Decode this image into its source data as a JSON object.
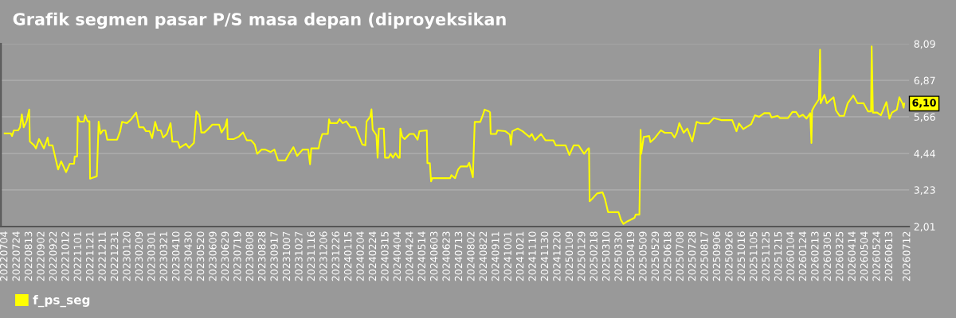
{
  "chart_data": {
    "type": "line",
    "title": "Grafik segmen pasar P/S masa depan (diproyeksikan",
    "x": [
      "2022-07-04",
      "2022-07-14",
      "2022-07-16",
      "2022-07-19",
      "2022-07-26",
      "2022-07-29",
      "2022-08-01",
      "2022-08-04",
      "2022-08-09",
      "2022-08-13",
      "2022-08-14",
      "2022-08-21",
      "2022-08-24",
      "2022-08-29",
      "2022-09-06",
      "2022-09-12",
      "2022-09-14",
      "2022-09-20",
      "2022-09-25",
      "2022-09-29",
      "2022-10-04",
      "2022-10-12",
      "2022-10-18",
      "2022-10-25",
      "2022-10-26",
      "2022-10-30",
      "2022-10-31",
      "2022-11-03",
      "2022-11-10",
      "2022-11-12",
      "2022-11-16",
      "2022-11-19",
      "2022-11-20",
      "2022-12-01",
      "2022-12-04",
      "2022-12-07",
      "2022-12-11",
      "2022-12-15",
      "2022-12-18",
      "2023-01-03",
      "2023-01-08",
      "2023-01-11",
      "2023-01-19",
      "2023-01-26",
      "2023-02-03",
      "2023-02-08",
      "2023-02-15",
      "2023-02-19",
      "2023-02-25",
      "2023-03-01",
      "2023-03-06",
      "2023-03-10",
      "2023-03-15",
      "2023-03-19",
      "2023-03-25",
      "2023-03-31",
      "2023-04-03",
      "2023-04-12",
      "2023-04-15",
      "2023-04-25",
      "2023-04-30",
      "2023-05-08",
      "2023-05-12",
      "2023-05-17",
      "2023-05-20",
      "2023-05-25",
      "2023-05-30",
      "2023-06-07",
      "2023-06-18",
      "2023-06-22",
      "2023-06-28",
      "2023-07-01",
      "2023-07-02",
      "2023-07-12",
      "2023-07-20",
      "2023-07-27",
      "2023-08-02",
      "2023-08-09",
      "2023-08-15",
      "2023-08-19",
      "2023-08-26",
      "2023-09-01",
      "2023-09-10",
      "2023-09-16",
      "2023-09-22",
      "2023-10-04",
      "2023-10-10",
      "2023-10-17",
      "2023-10-23",
      "2023-11-01",
      "2023-11-10",
      "2023-11-13",
      "2023-11-15",
      "2023-11-27",
      "2023-11-29",
      "2023-12-03",
      "2023-12-12",
      "2023-12-14",
      "2023-12-16",
      "2023-12-27",
      "2023-12-31",
      "2024-01-05",
      "2024-01-11",
      "2024-01-18",
      "2024-01-26",
      "2024-01-31",
      "2024-02-06",
      "2024-02-11",
      "2024-02-13",
      "2024-02-19",
      "2024-02-21",
      "2024-02-23",
      "2024-02-29",
      "2024-03-02",
      "2024-03-04",
      "2024-03-12",
      "2024-03-14",
      "2024-03-20",
      "2024-03-23",
      "2024-03-27",
      "2024-03-31",
      "2024-04-05",
      "2024-04-07",
      "2024-04-08",
      "2024-04-11",
      "2024-04-15",
      "2024-04-23",
      "2024-04-30",
      "2024-05-06",
      "2024-05-09",
      "2024-05-21",
      "2024-05-22",
      "2024-05-26",
      "2024-05-28",
      "2024-05-30",
      "2024-06-28",
      "2024-06-30",
      "2024-07-06",
      "2024-07-11",
      "2024-07-15",
      "2024-07-26",
      "2024-07-29",
      "2024-08-04",
      "2024-08-07",
      "2024-08-16",
      "2024-08-21",
      "2024-08-23",
      "2024-08-29",
      "2024-09-01",
      "2024-09-02",
      "2024-09-11",
      "2024-09-13",
      "2024-09-26",
      "2024-10-03",
      "2024-10-05",
      "2024-10-07",
      "2024-10-16",
      "2024-10-24",
      "2024-11-04",
      "2024-11-08",
      "2024-11-13",
      "2024-11-18",
      "2024-11-23",
      "2024-11-30",
      "2024-12-13",
      "2024-12-17",
      "2025-01-02",
      "2025-01-08",
      "2025-01-15",
      "2025-01-23",
      "2025-02-01",
      "2025-02-08",
      "2025-02-09",
      "2025-02-10",
      "2025-02-14",
      "2025-02-22",
      "2025-03-03",
      "2025-03-07",
      "2025-03-12",
      "2025-03-29",
      "2025-04-02",
      "2025-04-06",
      "2025-04-13",
      "2025-04-24",
      "2025-04-26",
      "2025-05-02",
      "2025-05-04",
      "2025-05-05",
      "2025-05-09",
      "2025-05-18",
      "2025-05-20",
      "2025-05-26",
      "2025-06-06",
      "2025-06-12",
      "2025-06-23",
      "2025-06-28",
      "2025-07-02",
      "2025-07-06",
      "2025-07-13",
      "2025-07-19",
      "2025-07-27",
      "2025-08-03",
      "2025-08-10",
      "2025-08-23",
      "2025-08-31",
      "2025-09-12",
      "2025-09-30",
      "2025-10-07",
      "2025-10-11",
      "2025-10-18",
      "2025-10-31",
      "2025-11-06",
      "2025-11-13",
      "2025-11-21",
      "2025-11-30",
      "2025-12-03",
      "2025-12-13",
      "2025-12-17",
      "2025-12-30",
      "2026-01-06",
      "2026-01-12",
      "2026-01-17",
      "2026-01-23",
      "2026-01-29",
      "2026-02-04",
      "2026-02-06",
      "2026-02-07",
      "2026-02-11",
      "2026-02-18",
      "2026-02-20",
      "2026-02-21",
      "2026-02-27",
      "2026-03-03",
      "2026-03-14",
      "2026-03-18",
      "2026-03-24",
      "2026-03-31",
      "2026-04-06",
      "2026-04-15",
      "2026-04-22",
      "2026-05-02",
      "2026-05-09",
      "2026-05-14",
      "2026-05-15",
      "2026-05-17",
      "2026-05-24",
      "2026-05-30",
      "2026-06-08",
      "2026-06-13",
      "2026-06-17",
      "2026-06-25",
      "2026-06-29",
      "2026-07-04",
      "2026-07-06",
      "2026-07-07"
    ],
    "series": [
      {
        "name": "f_ps_seg",
        "color": "#ffff00",
        "values": [
          5.11,
          5.11,
          5.02,
          5.21,
          5.21,
          5.31,
          5.74,
          5.31,
          5.53,
          5.9,
          4.84,
          4.71,
          4.61,
          4.92,
          4.61,
          4.97,
          4.71,
          4.71,
          4.26,
          3.91,
          4.18,
          3.82,
          4.1,
          4.1,
          4.34,
          4.34,
          5.67,
          5.5,
          5.5,
          5.71,
          5.51,
          5.51,
          3.6,
          3.68,
          5.5,
          5.09,
          5.21,
          5.21,
          4.9,
          4.9,
          5.18,
          5.49,
          5.45,
          5.58,
          5.8,
          5.31,
          5.31,
          5.18,
          5.18,
          4.95,
          5.49,
          5.21,
          5.21,
          4.97,
          5.09,
          5.45,
          4.83,
          4.83,
          4.63,
          4.76,
          4.63,
          4.79,
          5.84,
          5.71,
          5.14,
          5.14,
          5.23,
          5.4,
          5.4,
          5.14,
          5.33,
          5.58,
          4.92,
          4.92,
          5.0,
          5.14,
          4.88,
          4.88,
          4.74,
          4.43,
          4.57,
          4.57,
          4.49,
          4.57,
          4.21,
          4.21,
          4.43,
          4.65,
          4.36,
          4.57,
          4.57,
          4.08,
          4.61,
          4.61,
          4.83,
          5.09,
          5.09,
          5.58,
          5.45,
          5.45,
          5.58,
          5.45,
          5.51,
          5.31,
          5.31,
          5.05,
          4.74,
          4.71,
          5.5,
          5.67,
          5.91,
          5.23,
          5.05,
          4.3,
          5.27,
          5.27,
          4.3,
          4.3,
          4.43,
          4.3,
          4.45,
          4.3,
          4.3,
          5.27,
          5.0,
          4.92,
          5.09,
          5.09,
          4.9,
          5.18,
          5.21,
          4.12,
          4.12,
          3.51,
          3.62,
          3.62,
          3.72,
          3.62,
          3.91,
          4.01,
          4.01,
          4.13,
          3.65,
          5.49,
          5.49,
          5.76,
          5.9,
          5.85,
          5.81,
          5.09,
          5.09,
          5.21,
          5.18,
          5.07,
          4.73,
          5.18,
          5.27,
          5.18,
          4.99,
          5.09,
          4.88,
          4.99,
          5.09,
          4.88,
          4.88,
          4.71,
          4.71,
          4.39,
          4.71,
          4.71,
          4.43,
          4.61,
          4.61,
          2.85,
          2.93,
          3.11,
          3.15,
          2.93,
          2.49,
          2.49,
          2.23,
          2.1,
          2.19,
          2.3,
          2.41,
          2.41,
          5.23,
          4.43,
          4.99,
          5.02,
          4.82,
          4.93,
          5.21,
          5.13,
          5.13,
          4.97,
          5.13,
          5.45,
          5.13,
          5.27,
          4.84,
          5.49,
          5.44,
          5.44,
          5.62,
          5.55,
          5.55,
          5.18,
          5.44,
          5.25,
          5.42,
          5.71,
          5.66,
          5.78,
          5.78,
          5.64,
          5.69,
          5.62,
          5.62,
          5.82,
          5.82,
          5.66,
          5.73,
          5.6,
          5.78,
          4.79,
          5.87,
          6.02,
          6.24,
          7.89,
          6.11,
          6.39,
          6.11,
          6.31,
          5.87,
          5.69,
          5.69,
          6.11,
          6.37,
          6.11,
          6.11,
          5.84,
          5.84,
          8.0,
          5.8,
          5.8,
          5.71,
          6.15,
          5.6,
          5.8,
          5.9,
          6.31,
          6.11,
          5.96,
          6.1
        ]
      }
    ],
    "ylim": [
      2.01,
      8.09
    ],
    "yticks": [
      {
        "value": 2.01,
        "label": "2,01"
      },
      {
        "value": 3.23,
        "label": "3,23"
      },
      {
        "value": 4.44,
        "label": "4,44"
      },
      {
        "value": 5.66,
        "label": "5,66"
      },
      {
        "value": 6.87,
        "label": "6,87"
      },
      {
        "value": 8.09,
        "label": "8,09"
      }
    ],
    "xlim": [
      "2022-06-28",
      "2026-07-15"
    ],
    "xticks": [
      {
        "value": "2022-07-04",
        "label": "20220704"
      },
      {
        "value": "2022-07-24",
        "label": "20220724"
      },
      {
        "value": "2022-08-13",
        "label": "20220813"
      },
      {
        "value": "2022-09-02",
        "label": "20220902"
      },
      {
        "value": "2022-09-22",
        "label": "20220922"
      },
      {
        "value": "2022-10-12",
        "label": "20221012"
      },
      {
        "value": "2022-11-01",
        "label": "20221101"
      },
      {
        "value": "2022-11-21",
        "label": "20221121"
      },
      {
        "value": "2022-12-11",
        "label": "20221211"
      },
      {
        "value": "2022-12-31",
        "label": "20221231"
      },
      {
        "value": "2023-01-20",
        "label": "20230120"
      },
      {
        "value": "2023-02-09",
        "label": "20230209"
      },
      {
        "value": "2023-03-01",
        "label": "20230301"
      },
      {
        "value": "2023-03-21",
        "label": "20230321"
      },
      {
        "value": "2023-04-10",
        "label": "20230410"
      },
      {
        "value": "2023-04-30",
        "label": "20230430"
      },
      {
        "value": "2023-05-20",
        "label": "20230520"
      },
      {
        "value": "2023-06-09",
        "label": "20230609"
      },
      {
        "value": "2023-06-29",
        "label": "20230629"
      },
      {
        "value": "2023-07-19",
        "label": "20230719"
      },
      {
        "value": "2023-08-08",
        "label": "20230808"
      },
      {
        "value": "2023-08-28",
        "label": "20230828"
      },
      {
        "value": "2023-09-17",
        "label": "20230917"
      },
      {
        "value": "2023-10-07",
        "label": "20231007"
      },
      {
        "value": "2023-10-27",
        "label": "20231027"
      },
      {
        "value": "2023-11-16",
        "label": "20231116"
      },
      {
        "value": "2023-12-06",
        "label": "20231206"
      },
      {
        "value": "2023-12-26",
        "label": "20231226"
      },
      {
        "value": "2024-01-15",
        "label": "20240115"
      },
      {
        "value": "2024-02-04",
        "label": "20240204"
      },
      {
        "value": "2024-02-24",
        "label": "20240224"
      },
      {
        "value": "2024-03-15",
        "label": "20240315"
      },
      {
        "value": "2024-04-04",
        "label": "20240404"
      },
      {
        "value": "2024-04-24",
        "label": "20240424"
      },
      {
        "value": "2024-05-14",
        "label": "20240514"
      },
      {
        "value": "2024-06-03",
        "label": "20240603"
      },
      {
        "value": "2024-06-23",
        "label": "20240623"
      },
      {
        "value": "2024-07-13",
        "label": "20240713"
      },
      {
        "value": "2024-08-02",
        "label": "20240802"
      },
      {
        "value": "2024-08-22",
        "label": "20240822"
      },
      {
        "value": "2024-09-11",
        "label": "20240911"
      },
      {
        "value": "2024-10-01",
        "label": "20241001"
      },
      {
        "value": "2024-10-21",
        "label": "20241021"
      },
      {
        "value": "2024-11-10",
        "label": "20241110"
      },
      {
        "value": "2024-11-30",
        "label": "20241130"
      },
      {
        "value": "2024-12-20",
        "label": "20241220"
      },
      {
        "value": "2025-01-09",
        "label": "20250109"
      },
      {
        "value": "2025-01-29",
        "label": "20250129"
      },
      {
        "value": "2025-02-18",
        "label": "20250218"
      },
      {
        "value": "2025-03-10",
        "label": "20250310"
      },
      {
        "value": "2025-03-30",
        "label": "20250330"
      },
      {
        "value": "2025-04-19",
        "label": "20250419"
      },
      {
        "value": "2025-05-09",
        "label": "20250509"
      },
      {
        "value": "2025-05-29",
        "label": "20250529"
      },
      {
        "value": "2025-06-18",
        "label": "20250618"
      },
      {
        "value": "2025-07-08",
        "label": "20250708"
      },
      {
        "value": "2025-07-28",
        "label": "20250728"
      },
      {
        "value": "2025-08-17",
        "label": "20250817"
      },
      {
        "value": "2025-09-06",
        "label": "20250906"
      },
      {
        "value": "2025-09-26",
        "label": "20250926"
      },
      {
        "value": "2025-10-16",
        "label": "20251016"
      },
      {
        "value": "2025-11-05",
        "label": "20251105"
      },
      {
        "value": "2025-11-25",
        "label": "20251125"
      },
      {
        "value": "2025-12-15",
        "label": "20251215"
      },
      {
        "value": "2026-01-04",
        "label": "20260104"
      },
      {
        "value": "2026-01-24",
        "label": "20260124"
      },
      {
        "value": "2026-02-13",
        "label": "20260213"
      },
      {
        "value": "2026-03-05",
        "label": "20260305"
      },
      {
        "value": "2026-03-25",
        "label": "20260325"
      },
      {
        "value": "2026-04-14",
        "label": "20260414"
      },
      {
        "value": "2026-05-04",
        "label": "20260504"
      },
      {
        "value": "2026-05-24",
        "label": "20260524"
      },
      {
        "value": "2026-06-13",
        "label": "20260613"
      },
      {
        "value": "2026-07-12",
        "label": "20260712"
      }
    ],
    "annotations": [
      {
        "text": "6,10",
        "x": "2026-07-07",
        "y": 6.1
      }
    ],
    "grid": "y",
    "legend": "bottom left",
    "marker": "none",
    "line_style": "solid"
  }
}
